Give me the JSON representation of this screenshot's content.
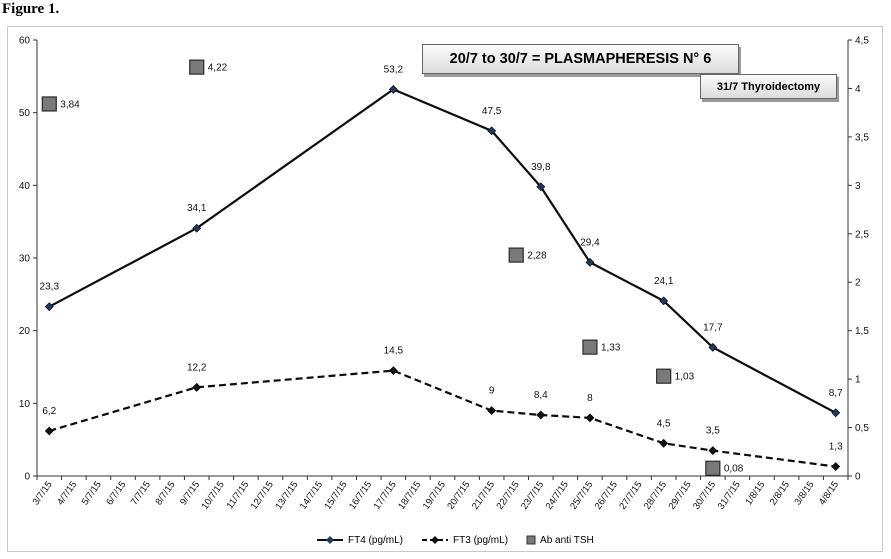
{
  "figure_label": "Figure 1.",
  "annotations": {
    "plasmapheresis": "20/7 to 30/7 = PLASMAPHERESIS   N° 6",
    "thyroidectomy": "31/7 Thyroidectomy"
  },
  "chart_data": {
    "type": "line",
    "categories": [
      "3/7/15",
      "4/7/15",
      "5/7/15",
      "6/7/15",
      "7/7/15",
      "8/7/15",
      "9/7/15",
      "10/7/15",
      "11/7/15",
      "12/7/15",
      "13/7/15",
      "14/7/15",
      "15/7/15",
      "16/7/15",
      "17/7/15",
      "18/7/15",
      "19/7/15",
      "20/7/15",
      "21/7/15",
      "22/7/15",
      "23/7/15",
      "24/7/15",
      "25/7/15",
      "26/7/15",
      "27/7/15",
      "28/7/15",
      "29/7/15",
      "30/7/15",
      "31/7/15",
      "1/8/15",
      "2/8/15",
      "3/8/15",
      "4/8/15"
    ],
    "y_left": {
      "ylim": [
        0,
        60
      ],
      "ticks": [
        "0",
        "10",
        "20",
        "30",
        "40",
        "50",
        "60"
      ]
    },
    "y_right": {
      "ylim": [
        0,
        4.5
      ],
      "ticks": [
        "0",
        "0,5",
        "1",
        "1,5",
        "2",
        "2,5",
        "3",
        "3,5",
        "4",
        "4,5"
      ]
    },
    "grid": false,
    "legend_position": "bottom",
    "series": [
      {
        "name": "FT4 (pg/mL)",
        "axis": "left",
        "style": "solid",
        "color": "#0d0d0d",
        "marker_color": "#1f3a5f",
        "points": [
          {
            "x": "3/7/15",
            "y": 23.3,
            "label": "23,3"
          },
          {
            "x": "9/7/15",
            "y": 34.1,
            "label": "34,1"
          },
          {
            "x": "17/7/15",
            "y": 53.2,
            "label": "53,2"
          },
          {
            "x": "21/7/15",
            "y": 47.5,
            "label": "47,5"
          },
          {
            "x": "23/7/15",
            "y": 39.8,
            "label": "39,8"
          },
          {
            "x": "25/7/15",
            "y": 29.4,
            "label": "29,4"
          },
          {
            "x": "28/7/15",
            "y": 24.1,
            "label": "24,1"
          },
          {
            "x": "30/7/15",
            "y": 17.7,
            "label": "17,7"
          },
          {
            "x": "4/8/15",
            "y": 8.7,
            "label": "8,7"
          }
        ]
      },
      {
        "name": "FT3 (pg/mL)",
        "axis": "left",
        "style": "dashed",
        "color": "#0d0d0d",
        "marker_color": "#111111",
        "points": [
          {
            "x": "3/7/15",
            "y": 6.2,
            "label": "6,2"
          },
          {
            "x": "9/7/15",
            "y": 12.2,
            "label": "12,2"
          },
          {
            "x": "17/7/15",
            "y": 14.5,
            "label": "14,5"
          },
          {
            "x": "21/7/15",
            "y": 9,
            "label": "9"
          },
          {
            "x": "23/7/15",
            "y": 8.4,
            "label": "8,4"
          },
          {
            "x": "25/7/15",
            "y": 8,
            "label": "8"
          },
          {
            "x": "28/7/15",
            "y": 4.5,
            "label": "4,5"
          },
          {
            "x": "30/7/15",
            "y": 3.5,
            "label": "3,5"
          },
          {
            "x": "4/8/15",
            "y": 1.3,
            "label": "1,3"
          }
        ]
      },
      {
        "name": "Ab anti TSH",
        "axis": "right",
        "style": "markers",
        "color": "#7a7a7a",
        "points": [
          {
            "x": "3/7/15",
            "y": 3.84,
            "label": "3,84"
          },
          {
            "x": "9/7/15",
            "y": 4.22,
            "label": "4,22"
          },
          {
            "x": "22/7/15",
            "y": 2.28,
            "label": "2,28"
          },
          {
            "x": "25/7/15",
            "y": 1.33,
            "label": "1,33"
          },
          {
            "x": "28/7/15",
            "y": 1.03,
            "label": "1,03"
          },
          {
            "x": "30/7/15",
            "y": 0.08,
            "label": "0,08"
          }
        ]
      }
    ]
  }
}
